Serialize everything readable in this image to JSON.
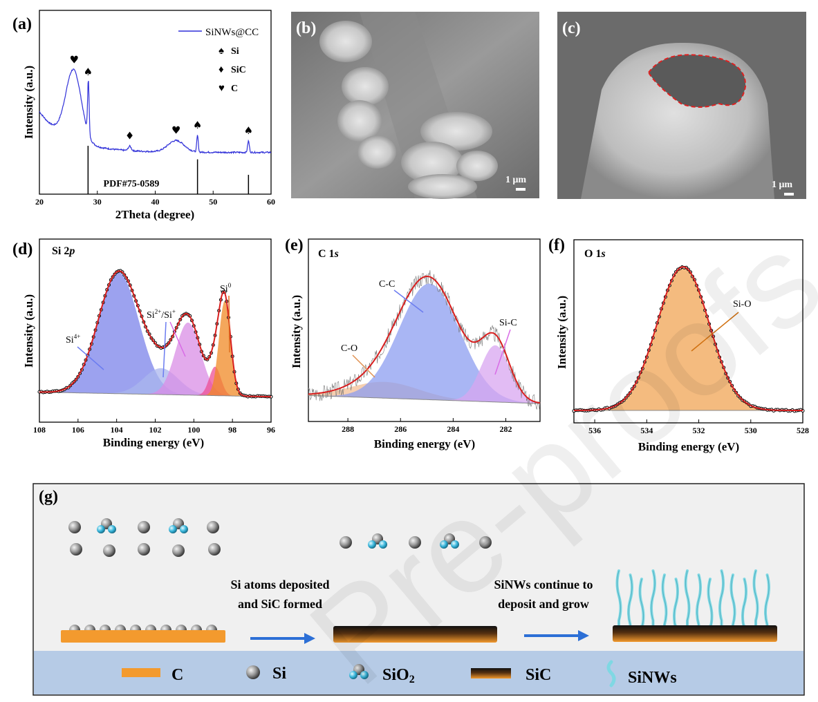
{
  "watermark": "Pre-proofs",
  "chart_data": [
    {
      "panel": "(a)",
      "type": "line",
      "title": "",
      "xlabel": "2Theta (degree)",
      "ylabel": "Intensity (a.u.)",
      "xlim": [
        20,
        60
      ],
      "xticks": [
        "20",
        "30",
        "40",
        "50",
        "60"
      ],
      "series": [
        {
          "name": "SiNWs@CC",
          "color": "#2f2fd8"
        }
      ],
      "reference": {
        "label": "PDF#75-0589",
        "peaks": [
          {
            "x": 28.4,
            "h": 1.0
          },
          {
            "x": 47.3,
            "h": 0.72
          },
          {
            "x": 56.1,
            "h": 0.4
          }
        ]
      },
      "legend": [
        {
          "symbol": "♠",
          "label": "Si"
        },
        {
          "symbol": "♦",
          "label": "SiC"
        },
        {
          "symbol": "♥",
          "label": "C"
        }
      ],
      "annotations": [
        {
          "symbol": "♥",
          "x": 26.0
        },
        {
          "symbol": "♠",
          "x": 28.4
        },
        {
          "symbol": "♦",
          "x": 35.6
        },
        {
          "symbol": "♥",
          "x": 43.6
        },
        {
          "symbol": "♠",
          "x": 47.3
        },
        {
          "symbol": "♠",
          "x": 56.1
        }
      ]
    },
    {
      "panel": "(d)",
      "type": "line",
      "title": "Si 2p",
      "title_main": "Si 2",
      "title_ital": "p",
      "xlabel": "Binding energy (eV)",
      "ylabel": "Intensity (a.u.)",
      "xlim": [
        108,
        96
      ],
      "xticks": [
        "108",
        "106",
        "104",
        "102",
        "100",
        "98",
        "96"
      ],
      "components": [
        {
          "name": "Si4+",
          "label_main": "Si",
          "label_sup": "4+",
          "center": 103.9,
          "height": 0.92,
          "width": 1.05,
          "color": "#7b83ea"
        },
        {
          "name": "Si2+/Si+",
          "label_main": "Si",
          "label_sup1": "2+",
          "label_sep": "/Si",
          "label_sup2": "+",
          "center": 101.7,
          "height": 0.2,
          "width": 0.9,
          "color": "#a9b6ee"
        },
        {
          "name": "Si2+/Si+ (b)",
          "center": 100.3,
          "height": 0.55,
          "width": 0.65,
          "color": "#d98ee6"
        },
        {
          "name": "Si0 (a)",
          "center": 98.9,
          "height": 0.22,
          "width": 0.3,
          "color": "#ee4f95"
        },
        {
          "name": "Si0",
          "label_main": "Si",
          "label_sup": "0",
          "center": 98.4,
          "height": 0.72,
          "width": 0.3,
          "color": "#f08a26"
        }
      ]
    },
    {
      "panel": "(e)",
      "type": "line",
      "title": "C 1s",
      "title_main": "C 1",
      "title_ital": "s",
      "xlabel": "Binding energy (eV)",
      "ylabel": "Intensity (a.u.)",
      "xlim": [
        289.5,
        280.7
      ],
      "xticks": [
        "288",
        "286",
        "284",
        "282"
      ],
      "components": [
        {
          "name": "C-O",
          "center": 286.6,
          "height": 0.12,
          "width": 1.3,
          "color": "#f3bf95"
        },
        {
          "name": "C-C",
          "center": 284.9,
          "height": 0.86,
          "width": 1.15,
          "color": "#8c9df0"
        },
        {
          "name": "Si-C",
          "center": 282.4,
          "height": 0.42,
          "width": 0.55,
          "color": "#d8a6f0"
        }
      ]
    },
    {
      "panel": "(f)",
      "type": "line",
      "title": "O 1s",
      "title_main": "O 1",
      "title_ital": "s",
      "xlabel": "Binding energy (eV)",
      "ylabel": "Intensity (a.u.)",
      "xlim": [
        536.8,
        528
      ],
      "xticks": [
        "536",
        "534",
        "532",
        "530",
        "528"
      ],
      "components": [
        {
          "name": "Si-O",
          "center": 532.6,
          "height": 0.98,
          "width": 1.0,
          "color": "#f0a454"
        }
      ]
    }
  ],
  "sem": [
    {
      "panel": "(b)",
      "scale": "1 μm"
    },
    {
      "panel": "(c)",
      "scale": "1 μm"
    }
  ],
  "schematic": {
    "panel": "(g)",
    "step1": [
      "Si atoms deposited",
      "and SiC formed"
    ],
    "step2": [
      "SiNWs continue to",
      "deposit and grow"
    ],
    "legend": [
      "C",
      "Si",
      "SiO",
      "SiC",
      "SiNWs"
    ],
    "legend_sub": "2",
    "colors": {
      "carbon": "#f39a2e",
      "silicon": "#8c8c8c",
      "oxygen": "#3fb6d8",
      "nanowire": "#7fd8e3",
      "panel_bg": "#f0f0f0",
      "legend_bg": "#b6cbe6",
      "arrow": "#2c6fd6"
    }
  }
}
